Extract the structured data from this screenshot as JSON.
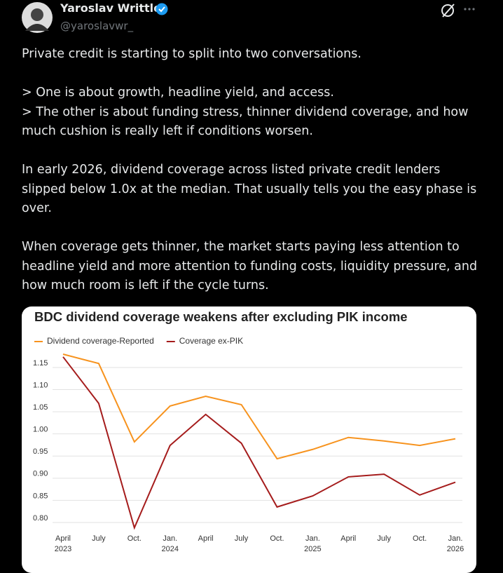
{
  "tweet": {
    "name": "Yaroslav Writtle",
    "handle": "@yaroslavwr_",
    "body": [
      "Private credit is starting to split into two conversations.",
      "> One is about growth, headline yield, and access.",
      "> The other is about funding stress, thinner dividend coverage, and how much cushion is really left if conditions worsen.",
      "In early 2026, dividend coverage across listed private credit lenders slipped below 1.0x at the median. That usually tells you the easy phase is over.",
      "When coverage gets thinner, the market starts paying less attention to headline yield and more attention to funding costs, liquidity pressure, and how much room is left if the cycle turns."
    ]
  },
  "chart_data": {
    "type": "line",
    "title": "BDC dividend coverage weakens after excluding PIK income",
    "categories": [
      "April",
      "July",
      "Oct.",
      "Jan.",
      "April",
      "July",
      "Oct.",
      "Jan.",
      "April",
      "July",
      "Oct.",
      "Jan."
    ],
    "category_years": [
      "2023",
      null,
      null,
      "2024",
      null,
      null,
      null,
      "2025",
      null,
      null,
      null,
      "2026"
    ],
    "series": [
      {
        "name": "Dividend coverage-Reported",
        "color": "#f7931e",
        "values": [
          1.18,
          1.159,
          0.982,
          1.063,
          1.085,
          1.066,
          0.944,
          0.965,
          0.992,
          0.984,
          0.974,
          0.989
        ]
      },
      {
        "name": "Coverage ex-PIK",
        "color": "#a51c1c",
        "values": [
          1.174,
          1.069,
          0.788,
          0.974,
          1.044,
          0.979,
          0.835,
          0.86,
          0.903,
          0.909,
          0.862,
          0.891
        ]
      }
    ],
    "ylim": [
      0.78,
      1.19
    ],
    "yticks": [
      {
        "value": 0.8,
        "label": "0.80"
      },
      0.85,
      {
        "value": 0.9,
        "label": "0.90"
      },
      0.95,
      {
        "value": 1.0,
        "label": "1.00"
      },
      1.05,
      {
        "value": 1.1,
        "label": "1.10"
      },
      1.15
    ],
    "grid": true,
    "legend": "top-left"
  }
}
